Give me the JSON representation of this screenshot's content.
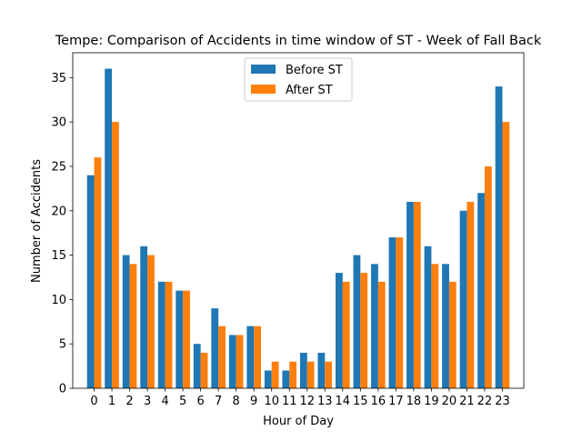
{
  "chart_data": {
    "type": "bar",
    "title": "Tempe: Comparison of Accidents in time window of ST - Week of Fall Back",
    "xlabel": "Hour of Day",
    "ylabel": "Number of Accidents",
    "categories": [
      "0",
      "1",
      "2",
      "3",
      "4",
      "5",
      "6",
      "7",
      "8",
      "9",
      "10",
      "11",
      "12",
      "13",
      "14",
      "15",
      "16",
      "17",
      "18",
      "19",
      "20",
      "21",
      "22",
      "23"
    ],
    "series": [
      {
        "name": "Before ST",
        "color": "#1f77b4",
        "values": [
          24,
          36,
          15,
          16,
          12,
          11,
          5,
          9,
          6,
          7,
          2,
          2,
          4,
          4,
          13,
          15,
          14,
          17,
          21,
          16,
          14,
          20,
          22,
          34
        ]
      },
      {
        "name": "After ST",
        "color": "#ff7f0e",
        "values": [
          26,
          30,
          14,
          15,
          12,
          11,
          4,
          7,
          6,
          7,
          3,
          3,
          3,
          3,
          12,
          13,
          12,
          17,
          21,
          14,
          12,
          21,
          25,
          30
        ]
      }
    ],
    "ylim": [
      0,
      37.8
    ],
    "yticks": [
      0,
      5,
      10,
      15,
      20,
      25,
      30,
      35
    ],
    "legend": "upper-center",
    "grid": false
  }
}
